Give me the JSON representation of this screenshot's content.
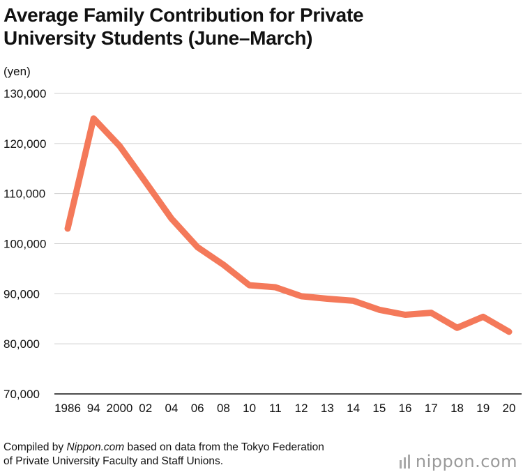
{
  "title_line1": "Average Family Contribution for Private",
  "title_line2": "University Students (June–March)",
  "unit_label": "(yen)",
  "source": {
    "prefix": "Compiled by ",
    "site": "Nippon.com",
    "rest_line1": " based on data from the Tokyo Federation",
    "line2": "of Private University Faculty and Staff Unions."
  },
  "logo": {
    "text": "nippon.com",
    "icon": "nippon-bars-icon"
  },
  "colors": {
    "line": "#f4795a",
    "grid": "#cfcfcf",
    "axis": "#111111"
  },
  "chart_data": {
    "type": "line",
    "title": "Average Family Contribution for Private University Students (June–March)",
    "ylabel": "(yen)",
    "ylim": [
      70000,
      130000
    ],
    "yticks": [
      70000,
      80000,
      90000,
      100000,
      110000,
      120000,
      130000
    ],
    "ytick_labels": [
      "70,000",
      "80,000",
      "90,000",
      "100,000",
      "110,000",
      "120,000",
      "130,000"
    ],
    "x_labels": [
      "1986",
      "94",
      "2000",
      "02",
      "04",
      "06",
      "08",
      "10",
      "11",
      "12",
      "13",
      "14",
      "15",
      "16",
      "17",
      "18",
      "19",
      "20"
    ],
    "series": [
      {
        "values": [
          103000,
          125000,
          119500,
          112300,
          105000,
          99300,
          95800,
          91700,
          91300,
          89500,
          89000,
          88600,
          86800,
          85800,
          86200,
          83200,
          85400,
          82400
        ]
      }
    ],
    "grid": true,
    "legend": "none"
  }
}
